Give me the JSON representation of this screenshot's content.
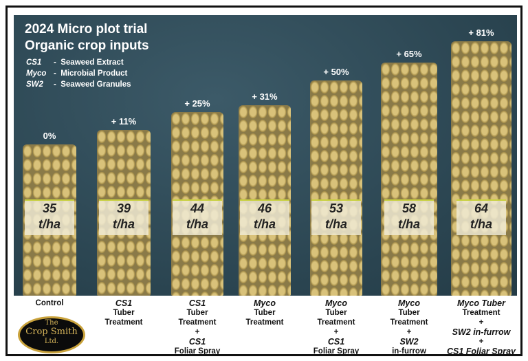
{
  "header": {
    "title_line1": "2024 Micro plot trial",
    "title_line2": "Organic crop inputs"
  },
  "legend": [
    {
      "abbr": "CS1",
      "sep": "-",
      "desc": "Seaweed Extract"
    },
    {
      "abbr": "Myco",
      "sep": "-",
      "desc": "Microbial Product"
    },
    {
      "abbr": "SW2",
      "sep": "-",
      "desc": "Seaweed Granules"
    }
  ],
  "logo": {
    "line1": "The",
    "line2": "Crop Smith",
    "line3": "Ltd."
  },
  "chart_data": {
    "type": "bar",
    "unit": "t/ha",
    "categories": [
      "Control",
      "CS1 Tuber Treatment",
      "CS1 Tuber Treatment + CS1 Foliar Spray",
      "Myco Tuber Treatment",
      "Myco Tuber Treatment + CS1 Foliar Spray",
      "Myco Tuber Treatment + SW2 in-furrow",
      "Myco Tuber Treatment + SW2 in-furrow + CS1 Foliar Spray"
    ],
    "values": [
      35,
      39,
      44,
      46,
      53,
      58,
      64
    ],
    "increase_labels": [
      "0%",
      "+ 11%",
      "+ 25%",
      "+ 31%",
      "+ 50%",
      "+ 65%",
      "+ 81%"
    ],
    "caption_lines": [
      [
        {
          "t": "Control"
        }
      ],
      [
        {
          "t": "CS1",
          "i": true
        },
        {
          "t": "Tuber"
        },
        {
          "t": "Treatment"
        }
      ],
      [
        {
          "t": "CS1",
          "i": true
        },
        {
          "t": "Tuber"
        },
        {
          "t": "Treatment"
        },
        {
          "t": "+"
        },
        {
          "t": "CS1",
          "i": true
        },
        {
          "t": "Foliar Spray"
        }
      ],
      [
        {
          "t": "Myco",
          "i": true
        },
        {
          "t": "Tuber"
        },
        {
          "t": "Treatment"
        }
      ],
      [
        {
          "t": "Myco",
          "i": true
        },
        {
          "t": "Tuber"
        },
        {
          "t": "Treatment"
        },
        {
          "t": "+"
        },
        {
          "t": "CS1",
          "i": true
        },
        {
          "t": "Foliar Spray"
        }
      ],
      [
        {
          "t": "Myco",
          "i": true
        },
        {
          "t": "Tuber"
        },
        {
          "t": "Treatment"
        },
        {
          "t": "+"
        },
        {
          "t": "SW2",
          "i": true
        },
        {
          "t": "in-furrow"
        }
      ],
      [
        {
          "t": "Myco Tuber",
          "i": true
        },
        {
          "t": "Treatment"
        },
        {
          "t": "+"
        },
        {
          "t": "SW2 in-furrow",
          "i": true
        },
        {
          "t": "+"
        },
        {
          "t": "CS1 Foliar Spray",
          "i": true
        }
      ]
    ]
  },
  "colors": {
    "background": "#2e4a57",
    "potato": "#d9c27a",
    "text_on_photo": "#ffffff"
  }
}
